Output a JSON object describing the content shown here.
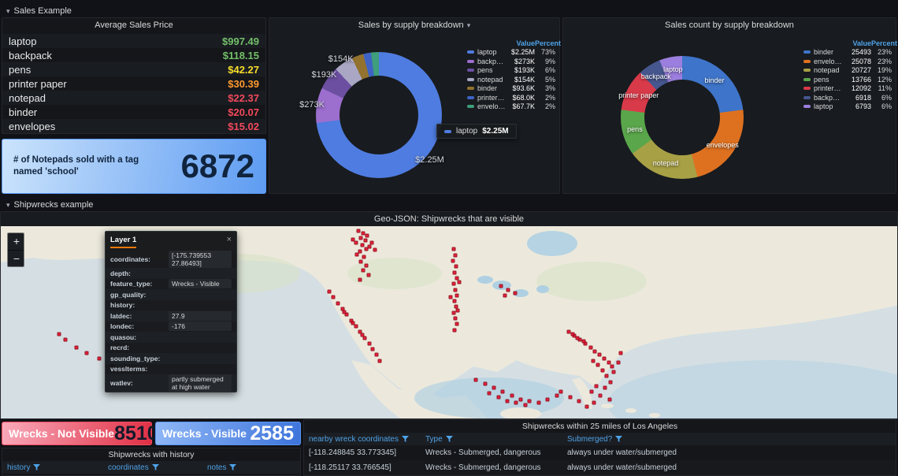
{
  "icons": {
    "chevron_down": "▾",
    "close": "×"
  },
  "colors": {
    "page_bg": "#111217",
    "panel_bg": "#181B1F",
    "panel_border": "#24262C",
    "text": "#D8D9DA",
    "header_blue": "#4FA3E8",
    "tab_orange": "#FF780A",
    "marker_red": "#E8102E",
    "green": "#73BF69",
    "yellow": "#FADE2A",
    "orange": "#FF9830",
    "red": "#F2495C",
    "blue": "#5794F2"
  },
  "sections": {
    "sales": "Sales Example",
    "shipwrecks": "Shipwrecks example"
  },
  "avg_price": {
    "title": "Average Sales Price",
    "rows": [
      {
        "name": "laptop",
        "value": "$997.49",
        "color": "#73BF69"
      },
      {
        "name": "backpack",
        "value": "$118.15",
        "color": "#73BF69"
      },
      {
        "name": "pens",
        "value": "$42.27",
        "color": "#FADE2A"
      },
      {
        "name": "printer paper",
        "value": "$30.39",
        "color": "#FF9830"
      },
      {
        "name": "notepad",
        "value": "$22.37",
        "color": "#F2495C"
      },
      {
        "name": "binder",
        "value": "$20.07",
        "color": "#F2495C"
      },
      {
        "name": "envelopes",
        "value": "$15.02",
        "color": "#F2495C"
      }
    ]
  },
  "notepad_stat": {
    "label": "# of Notepads sold with a tag named 'school'",
    "value": "6872"
  },
  "chart_data": [
    {
      "type": "pie",
      "donut": true,
      "title": "Sales by supply breakdown",
      "legend_position": "right",
      "legend_columns": [
        "Value",
        "Percent"
      ],
      "series": [
        {
          "name": "laptop",
          "value": "$2.25M",
          "percent": 73,
          "color": "#4F7CE0",
          "chart_label": "$2.25M"
        },
        {
          "name": "backpack",
          "value": "$273K",
          "percent": 9,
          "color": "#9C6ECE",
          "chart_label": "$273K"
        },
        {
          "name": "pens",
          "value": "$193K",
          "percent": 6,
          "color": "#6C4FA1",
          "chart_label": "$193K"
        },
        {
          "name": "notepad",
          "value": "$154K",
          "percent": 5,
          "color": "#A9A7C4",
          "chart_label": "$154K"
        },
        {
          "name": "binder",
          "value": "$93.6K",
          "percent": 3,
          "color": "#93722F"
        },
        {
          "name": "printer paper",
          "value": "$68.0K",
          "percent": 2,
          "color": "#3E63C4"
        },
        {
          "name": "envelopes",
          "value": "$67.7K",
          "percent": 2,
          "color": "#3F9E7B"
        }
      ],
      "tooltip": {
        "series": "laptop",
        "value": "$2.25M",
        "color": "#4F7CE0"
      }
    },
    {
      "type": "pie",
      "donut": true,
      "title": "Sales count by supply breakdown",
      "legend_position": "right",
      "legend_columns": [
        "Value",
        "Percent"
      ],
      "series": [
        {
          "name": "binder",
          "value": "25493",
          "percent": 23,
          "color": "#3E74C9",
          "chart_label": "binder"
        },
        {
          "name": "envelopes",
          "value": "25078",
          "percent": 23,
          "color": "#DE7120",
          "chart_label": "envelopes"
        },
        {
          "name": "notepad",
          "value": "20727",
          "percent": 19,
          "color": "#A8A045",
          "chart_label": "notepad"
        },
        {
          "name": "pens",
          "value": "13766",
          "percent": 12,
          "color": "#5AA64B",
          "chart_label": "pens"
        },
        {
          "name": "printer paper",
          "value": "12092",
          "percent": 11,
          "color": "#D93A49",
          "chart_label": "printer paper"
        },
        {
          "name": "backpack",
          "value": "6918",
          "percent": 6,
          "color": "#46568F",
          "chart_label": "backpack"
        },
        {
          "name": "laptop",
          "value": "6793",
          "percent": 6,
          "color": "#9B7EDE",
          "chart_label": "laptop"
        }
      ]
    }
  ],
  "map": {
    "title": "Geo-JSON: Shipwrecks that are visible",
    "zoom": {
      "in": "+",
      "out": "−"
    },
    "tooltip": {
      "title": "Layer 1",
      "close": "×",
      "fields": [
        {
          "label": "coordinates:",
          "value": "[-175.739553 27.86493]"
        },
        {
          "label": "depth:",
          "value": ""
        },
        {
          "label": "feature_type:",
          "value": "Wrecks - Visible"
        },
        {
          "label": "gp_quality:",
          "value": ""
        },
        {
          "label": "history:",
          "value": ""
        },
        {
          "label": "latdec:",
          "value": "27.9"
        },
        {
          "label": "londec:",
          "value": "-176"
        },
        {
          "label": "quasou:",
          "value": ""
        },
        {
          "label": "recrd:",
          "value": ""
        },
        {
          "label": "sounding_type:",
          "value": ""
        },
        {
          "label": "vesslterms:",
          "value": ""
        },
        {
          "label": "watlev:",
          "value": "partly submerged at high water"
        }
      ]
    },
    "markers": [
      [
        39.9,
        2.5
      ],
      [
        40.4,
        3.8
      ],
      [
        40.9,
        5
      ],
      [
        40.2,
        6.2
      ],
      [
        40.7,
        7.5
      ],
      [
        39.6,
        8.6
      ],
      [
        40.3,
        9.8
      ],
      [
        41.1,
        10.5
      ],
      [
        40.8,
        12
      ],
      [
        40.1,
        13.2
      ],
      [
        39.7,
        14.8
      ],
      [
        41.4,
        8.8
      ],
      [
        39.3,
        6.8
      ],
      [
        41.7,
        12.2
      ],
      [
        40.5,
        16
      ],
      [
        40.2,
        18.5
      ],
      [
        40.8,
        20.5
      ],
      [
        40.4,
        23
      ],
      [
        41.0,
        25.5
      ],
      [
        40.1,
        28
      ],
      [
        36.6,
        34
      ],
      [
        37.1,
        37
      ],
      [
        37.6,
        40
      ],
      [
        38.1,
        43
      ],
      [
        38.6,
        46
      ],
      [
        39.1,
        49
      ],
      [
        39.6,
        52
      ],
      [
        40.1,
        55
      ],
      [
        40.6,
        58
      ],
      [
        41.1,
        61
      ],
      [
        41.5,
        64
      ],
      [
        38.3,
        44.5
      ],
      [
        39.3,
        50.5
      ],
      [
        40.3,
        56.5
      ],
      [
        41.9,
        67
      ],
      [
        42.3,
        70
      ],
      [
        50.5,
        12
      ],
      [
        50.7,
        15
      ],
      [
        50.4,
        18
      ],
      [
        50.8,
        21
      ],
      [
        50.6,
        24
      ],
      [
        50.9,
        27
      ],
      [
        50.5,
        30
      ],
      [
        50.7,
        33
      ],
      [
        50.9,
        36
      ],
      [
        50.6,
        39
      ],
      [
        50.8,
        42
      ],
      [
        50.5,
        45
      ],
      [
        50.7,
        48
      ],
      [
        50.9,
        51
      ],
      [
        50.6,
        54
      ],
      [
        51.1,
        29
      ],
      [
        50.2,
        37
      ],
      [
        51.0,
        44
      ],
      [
        63.4,
        55
      ],
      [
        64.0,
        57
      ],
      [
        64.6,
        59
      ],
      [
        65.2,
        61
      ],
      [
        65.8,
        63
      ],
      [
        66.3,
        65
      ],
      [
        66.8,
        67
      ],
      [
        67.3,
        69
      ],
      [
        67.8,
        71
      ],
      [
        68.2,
        73
      ],
      [
        66.1,
        70
      ],
      [
        66.6,
        72
      ],
      [
        67.1,
        75
      ],
      [
        67.6,
        78
      ],
      [
        68.0,
        81
      ],
      [
        66.4,
        83
      ],
      [
        65.9,
        86
      ],
      [
        66.9,
        88
      ],
      [
        67.9,
        90
      ],
      [
        68.4,
        76
      ],
      [
        68.9,
        71
      ],
      [
        69.2,
        66
      ],
      [
        64.3,
        58
      ],
      [
        65.0,
        60
      ],
      [
        63.8,
        56
      ],
      [
        67.4,
        84
      ],
      [
        66.2,
        92
      ],
      [
        65.4,
        94
      ],
      [
        53,
        80
      ],
      [
        54,
        82
      ],
      [
        55,
        84
      ],
      [
        56,
        86
      ],
      [
        57,
        88
      ],
      [
        58,
        90
      ],
      [
        59,
        91
      ],
      [
        60,
        92
      ],
      [
        61,
        90
      ],
      [
        62,
        88
      ],
      [
        56.5,
        91
      ],
      [
        57.5,
        92
      ],
      [
        58.5,
        93
      ],
      [
        54.5,
        87
      ],
      [
        55.5,
        89
      ],
      [
        62.5,
        86
      ],
      [
        63.5,
        89
      ],
      [
        64.5,
        91
      ],
      [
        7.2,
        59
      ],
      [
        8.4,
        63
      ],
      [
        9.6,
        66
      ],
      [
        11,
        69
      ],
      [
        12.4,
        72
      ],
      [
        13.6,
        75
      ],
      [
        6.5,
        56
      ],
      [
        55.8,
        31
      ],
      [
        56.6,
        33
      ],
      [
        57.4,
        35
      ],
      [
        56.2,
        36
      ]
    ]
  },
  "wrecks_not_visible": {
    "label": "Wrecks - Not Visible",
    "value": "8510"
  },
  "wrecks_visible": {
    "label": "Wrecks - Visible",
    "value": "2585"
  },
  "la_table": {
    "title": "Shipwrecks within 25 miles of Los Angeles",
    "columns": [
      "nearby wreck coordinates",
      "Type",
      "Submerged?"
    ],
    "rows": [
      [
        "[-118.248845 33.773345]",
        "Wrecks - Submerged, dangerous",
        "always under water/submerged"
      ],
      [
        "[-118.25117 33.766545]",
        "Wrecks - Submerged, dangerous",
        "always under water/submerged"
      ]
    ]
  },
  "history_table": {
    "title": "Shipwrecks with history",
    "columns": [
      "history",
      "coordinates",
      "notes"
    ],
    "rows": []
  }
}
